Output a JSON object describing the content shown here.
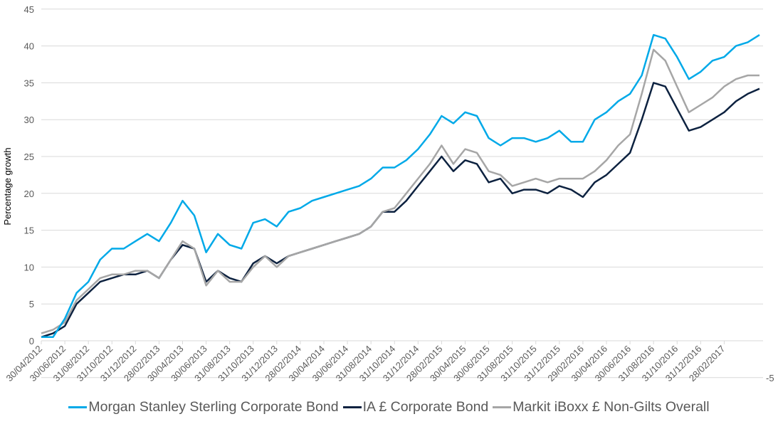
{
  "chart_data": {
    "type": "line",
    "title": "",
    "xlabel": "",
    "ylabel": "Percentage growth",
    "ylim": [
      -5,
      45
    ],
    "yticks": [
      -5,
      0,
      5,
      10,
      15,
      20,
      25,
      30,
      35,
      40,
      45
    ],
    "grid": true,
    "legend_position": "bottom",
    "x_tick_labels": [
      "30/04/2012",
      "30/06/2012",
      "31/08/2012",
      "31/10/2012",
      "31/12/2012",
      "28/02/2013",
      "30/04/2013",
      "30/06/2013",
      "31/08/2013",
      "31/10/2013",
      "31/12/2013",
      "28/02/2014",
      "30/04/2014",
      "30/06/2014",
      "31/08/2014",
      "31/10/2014",
      "31/12/2014",
      "28/02/2015",
      "30/04/2015",
      "30/06/2015",
      "31/08/2015",
      "31/10/2015",
      "31/12/2015",
      "29/02/2016",
      "30/04/2016",
      "30/06/2016",
      "31/08/2016",
      "31/10/2016",
      "31/12/2016",
      "28/02/2017"
    ],
    "x_unit": "months since 30/04/2012",
    "x": [
      0,
      1,
      2,
      3,
      4,
      5,
      6,
      7,
      8,
      9,
      10,
      11,
      12,
      13,
      14,
      15,
      16,
      17,
      18,
      19,
      20,
      21,
      22,
      23,
      24,
      25,
      26,
      27,
      28,
      29,
      30,
      31,
      32,
      33,
      34,
      35,
      36,
      37,
      38,
      39,
      40,
      41,
      42,
      43,
      44,
      45,
      46,
      47,
      48,
      49,
      50,
      51,
      52,
      53,
      54,
      55,
      56,
      57,
      58,
      59,
      60,
      61
    ],
    "series": [
      {
        "name": "Morgan Stanley Sterling Corporate Bond",
        "color": "#00a9e8",
        "values": [
          0.5,
          0.5,
          3,
          6.5,
          8,
          11,
          12.5,
          12.5,
          13.5,
          14.5,
          13.5,
          16,
          19,
          17,
          12,
          14.5,
          13,
          12.5,
          16,
          16.5,
          15.5,
          17.5,
          18,
          19,
          19.5,
          20,
          20.5,
          21,
          22,
          23.5,
          23.5,
          24.5,
          26,
          28,
          30.5,
          29.5,
          31,
          30.5,
          27.5,
          26.5,
          27.5,
          27.5,
          27,
          27.5,
          28.5,
          27,
          27,
          30,
          31,
          32.5,
          33.5,
          36,
          41.5,
          41,
          38.5,
          35.5,
          36.5,
          38,
          38.5,
          40,
          40.5,
          41.5
        ]
      },
      {
        "name": "IA £ Corporate Bond",
        "color": "#0d2240",
        "values": [
          0.5,
          1,
          2,
          5,
          6.5,
          8,
          8.5,
          9,
          9,
          9.5,
          8.5,
          11,
          13,
          12.5,
          8,
          9.5,
          8.5,
          8,
          10.5,
          11.5,
          10.5,
          11.5,
          12,
          12.5,
          13,
          13.5,
          14,
          14.5,
          15.5,
          17.5,
          17.5,
          19,
          21,
          23,
          25,
          23,
          24.5,
          24,
          21.5,
          22,
          20,
          20.5,
          20.5,
          20,
          21,
          20.5,
          19.5,
          21.5,
          22.5,
          24,
          25.5,
          30,
          35,
          34.5,
          31.5,
          28.5,
          29,
          30,
          31,
          32.5,
          33.5,
          34.2
        ]
      },
      {
        "name": "Markit iBoxx £ Non-Gilts Overall",
        "color": "#a6a6a6",
        "values": [
          1,
          1.5,
          2.5,
          5.5,
          7,
          8.5,
          9,
          9,
          9.5,
          9.5,
          8.5,
          11,
          13.5,
          12.5,
          7.5,
          9.5,
          8,
          8,
          10,
          11.5,
          10,
          11.5,
          12,
          12.5,
          13,
          13.5,
          14,
          14.5,
          15.5,
          17.5,
          18,
          20,
          22,
          24,
          26.5,
          24,
          26,
          25.5,
          23,
          22.5,
          21,
          21.5,
          22,
          21.5,
          22,
          22,
          22,
          23,
          24.5,
          26.5,
          28,
          33.5,
          39.5,
          38,
          34.5,
          31,
          32,
          33,
          34.5,
          35.5,
          36,
          36
        ]
      }
    ]
  }
}
